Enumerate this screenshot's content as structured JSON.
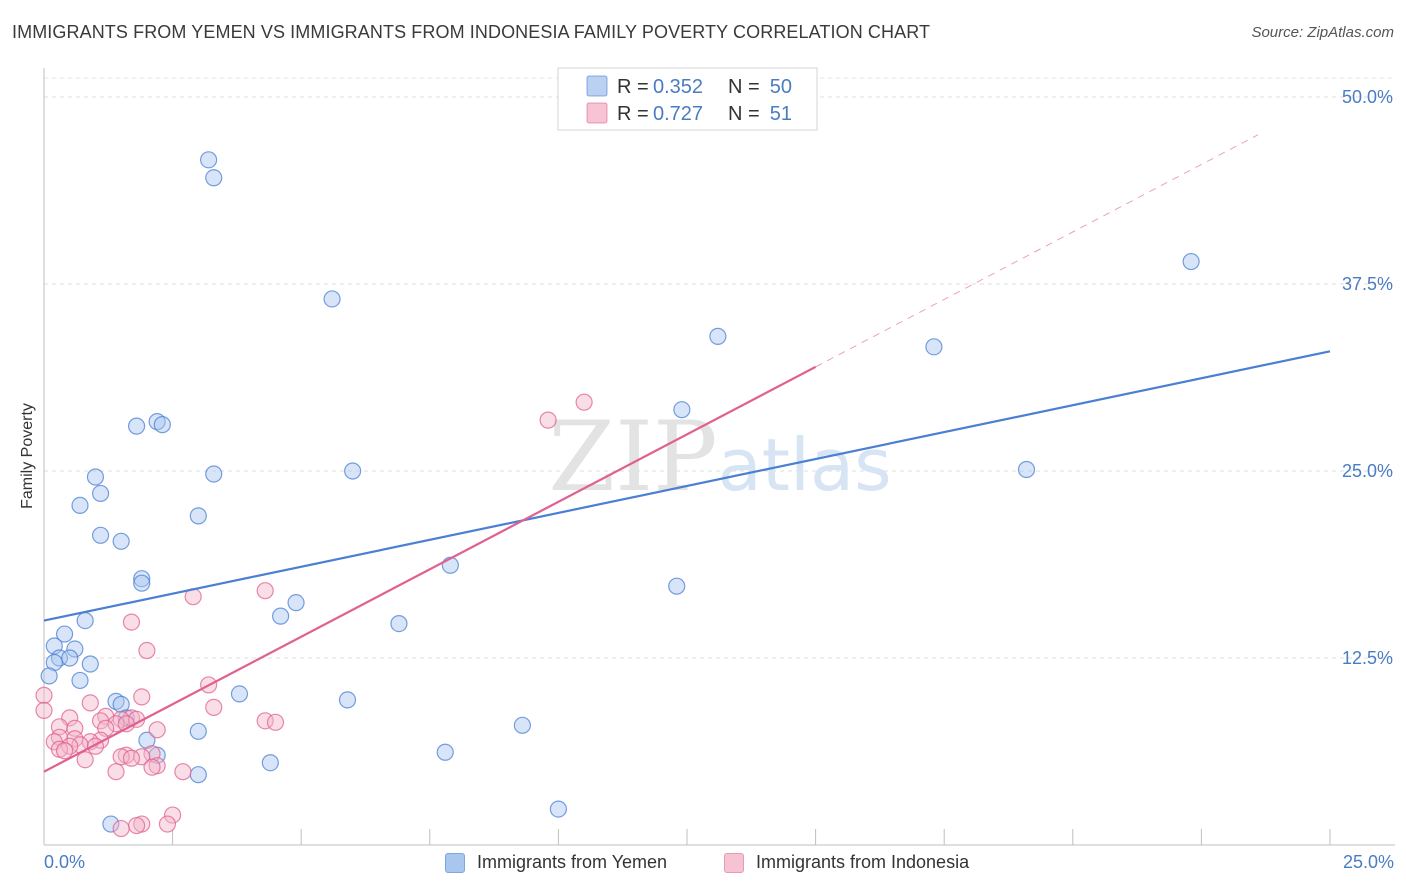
{
  "chart_data": {
    "type": "scatter",
    "title": "IMMIGRANTS FROM YEMEN VS IMMIGRANTS FROM INDONESIA FAMILY POVERTY CORRELATION CHART",
    "source": "Source: ZipAtlas.com",
    "xlabel": "",
    "ylabel": "Family Poverty",
    "xlim": [
      0,
      25
    ],
    "ylim": [
      0,
      50
    ],
    "x_tick_labels": [
      "0.0%",
      "25.0%"
    ],
    "y_ticks": [
      12.5,
      25.0,
      37.5,
      50.0
    ],
    "y_tick_labels": [
      "12.5%",
      "25.0%",
      "37.5%",
      "50.0%"
    ],
    "watermark": "ZIPatlas",
    "colors": {
      "yemen": "#4a7fd4",
      "yemen_fill": "#a9c6ef",
      "indonesia": "#e0608f",
      "indonesia_fill": "#f5b5c9",
      "tick_label": "#4a7cc4"
    },
    "legend": [
      {
        "series": "yemen",
        "r_label": "R =",
        "r_value": "0.352",
        "n_label": "N =",
        "n_value": "50"
      },
      {
        "series": "indonesia",
        "r_label": "R =",
        "r_value": "0.727",
        "n_label": "N =",
        "n_value": "51"
      }
    ],
    "series": [
      {
        "name": "Immigrants from Yemen",
        "key": "yemen",
        "trend": {
          "x0": 0,
          "y0": 15.0,
          "x1": 25,
          "y1": 33.0,
          "solid_to": 25
        },
        "points": [
          [
            3.2,
            45.8
          ],
          [
            3.3,
            44.6
          ],
          [
            22.3,
            39.0
          ],
          [
            5.6,
            36.5
          ],
          [
            13.1,
            34.0
          ],
          [
            17.3,
            33.3
          ],
          [
            12.4,
            29.1
          ],
          [
            2.2,
            28.3
          ],
          [
            1.8,
            28.0
          ],
          [
            2.3,
            28.1
          ],
          [
            6.0,
            25.0
          ],
          [
            3.3,
            24.8
          ],
          [
            19.1,
            25.1
          ],
          [
            1.0,
            24.6
          ],
          [
            1.1,
            23.5
          ],
          [
            0.7,
            22.7
          ],
          [
            3.0,
            22.0
          ],
          [
            1.1,
            20.7
          ],
          [
            1.5,
            20.3
          ],
          [
            7.9,
            18.7
          ],
          [
            1.9,
            17.8
          ],
          [
            1.9,
            17.5
          ],
          [
            12.3,
            17.3
          ],
          [
            4.9,
            16.2
          ],
          [
            4.6,
            15.3
          ],
          [
            0.8,
            15.0
          ],
          [
            6.9,
            14.8
          ],
          [
            0.4,
            14.1
          ],
          [
            0.2,
            13.3
          ],
          [
            0.6,
            13.1
          ],
          [
            0.3,
            12.5
          ],
          [
            0.5,
            12.5
          ],
          [
            0.2,
            12.2
          ],
          [
            0.9,
            12.1
          ],
          [
            0.1,
            11.3
          ],
          [
            0.7,
            11.0
          ],
          [
            3.8,
            10.1
          ],
          [
            1.4,
            9.6
          ],
          [
            5.9,
            9.7
          ],
          [
            1.5,
            9.4
          ],
          [
            1.6,
            8.5
          ],
          [
            3.0,
            7.6
          ],
          [
            9.3,
            8.0
          ],
          [
            2.0,
            7.0
          ],
          [
            2.2,
            6.0
          ],
          [
            7.8,
            6.2
          ],
          [
            4.4,
            5.5
          ],
          [
            3.0,
            4.7
          ],
          [
            10.0,
            2.4
          ],
          [
            1.3,
            1.4
          ]
        ]
      },
      {
        "name": "Immigrants from Indonesia",
        "key": "indonesia",
        "trend": {
          "x0": 0,
          "y0": 4.9,
          "x1": 25,
          "y1": 50.0,
          "solid_to": 15.0
        },
        "points": [
          [
            10.5,
            29.6
          ],
          [
            9.8,
            28.4
          ],
          [
            4.3,
            17.0
          ],
          [
            2.9,
            16.6
          ],
          [
            1.7,
            14.9
          ],
          [
            2.0,
            13.0
          ],
          [
            3.2,
            10.7
          ],
          [
            0.0,
            10.0
          ],
          [
            1.9,
            9.9
          ],
          [
            0.9,
            9.5
          ],
          [
            0.0,
            9.0
          ],
          [
            3.3,
            9.2
          ],
          [
            1.2,
            8.6
          ],
          [
            1.7,
            8.5
          ],
          [
            0.5,
            8.5
          ],
          [
            1.5,
            8.4
          ],
          [
            1.8,
            8.4
          ],
          [
            1.1,
            8.3
          ],
          [
            4.3,
            8.3
          ],
          [
            4.5,
            8.2
          ],
          [
            1.4,
            8.1
          ],
          [
            1.6,
            8.1
          ],
          [
            0.3,
            7.9
          ],
          [
            0.6,
            7.8
          ],
          [
            1.2,
            7.8
          ],
          [
            2.2,
            7.7
          ],
          [
            0.3,
            7.2
          ],
          [
            0.6,
            7.1
          ],
          [
            1.1,
            7.0
          ],
          [
            0.9,
            6.9
          ],
          [
            0.2,
            6.9
          ],
          [
            0.7,
            6.7
          ],
          [
            0.5,
            6.6
          ],
          [
            1.0,
            6.6
          ],
          [
            0.3,
            6.4
          ],
          [
            0.4,
            6.3
          ],
          [
            2.1,
            6.1
          ],
          [
            1.6,
            6.0
          ],
          [
            1.5,
            5.9
          ],
          [
            1.9,
            5.9
          ],
          [
            1.7,
            5.8
          ],
          [
            0.8,
            5.7
          ],
          [
            2.2,
            5.3
          ],
          [
            2.1,
            5.2
          ],
          [
            1.4,
            4.9
          ],
          [
            2.7,
            4.9
          ],
          [
            2.5,
            2.0
          ],
          [
            2.4,
            1.4
          ],
          [
            1.9,
            1.4
          ],
          [
            1.8,
            1.3
          ],
          [
            1.5,
            1.1
          ]
        ]
      }
    ]
  }
}
